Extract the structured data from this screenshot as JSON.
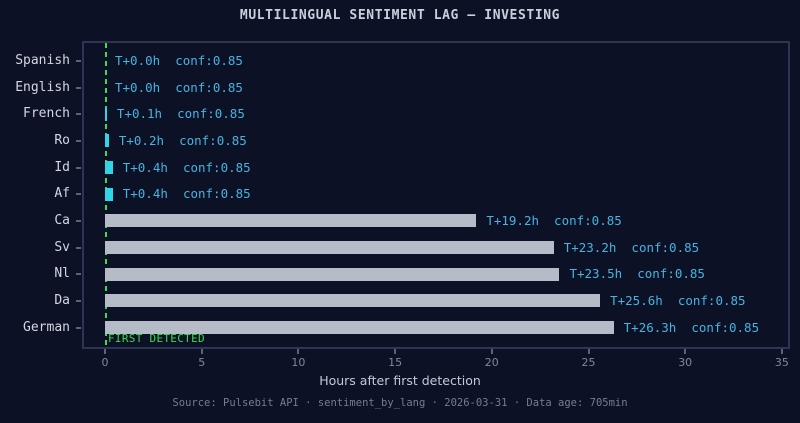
{
  "header": {
    "title": "MULTILINGUAL SENTIMENT LAG — INVESTING"
  },
  "chart_data": {
    "type": "bar",
    "orientation": "horizontal",
    "title": "MULTILINGUAL SENTIMENT LAG — INVESTING",
    "categories": [
      "Spanish",
      "English",
      "French",
      "Ro",
      "Id",
      "Af",
      "Ca",
      "Sv",
      "Nl",
      "Da",
      "German"
    ],
    "values_hours": [
      0.0,
      0.0,
      0.1,
      0.2,
      0.4,
      0.4,
      19.2,
      23.2,
      23.5,
      25.6,
      26.3
    ],
    "confidence_per_bar": [
      0.85,
      0.85,
      0.85,
      0.85,
      0.85,
      0.85,
      0.85,
      0.85,
      0.85,
      0.85,
      0.85
    ],
    "annotations": [
      "T+0.0h  conf:0.85",
      "T+0.0h  conf:0.85",
      "T+0.1h  conf:0.85",
      "T+0.2h  conf:0.85",
      "T+0.4h  conf:0.85",
      "T+0.4h  conf:0.85",
      "T+19.2h  conf:0.85",
      "T+23.2h  conf:0.85",
      "T+23.5h  conf:0.85",
      "T+25.6h  conf:0.85",
      "T+26.3h  conf:0.85"
    ],
    "bar_colors": [
      "#30d6e6",
      "#30d6e6",
      "#30d6e6",
      "#30d6e6",
      "#30d6e6",
      "#30d6e6",
      "#b5bcc8",
      "#b5bcc8",
      "#b5bcc8",
      "#b5bcc8",
      "#b5bcc8"
    ],
    "xlabel": "Hours after first detection",
    "xticks": [
      0,
      5,
      10,
      15,
      20,
      25,
      30,
      35
    ],
    "xtick_labels": [
      "0",
      "5",
      "10",
      "15",
      "20",
      "25",
      "30",
      "35"
    ],
    "xlim": [
      -1.2,
      35.4
    ],
    "grid": false,
    "legend": false,
    "reference_line": {
      "x": 0,
      "label": "FIRST DETECTED",
      "color": "#3cdb50",
      "style": "dashed"
    }
  },
  "footer": {
    "caption": "Source: Pulsebit API · sentiment_by_lang · 2026-03-31 · Data age: 705min"
  },
  "colors": {
    "background": "#0d1126",
    "plot_border": "#2c3654",
    "bar_small_accent": "#30d6e6",
    "bar_large": "#b5bcc8",
    "annotation_text": "#46b3e0",
    "reference_green": "#3cdb50",
    "title_text": "#c9cfdb",
    "category_text": "#d2d7e1",
    "tick_text": "#7e88a0",
    "footer_text": "#747d93"
  }
}
